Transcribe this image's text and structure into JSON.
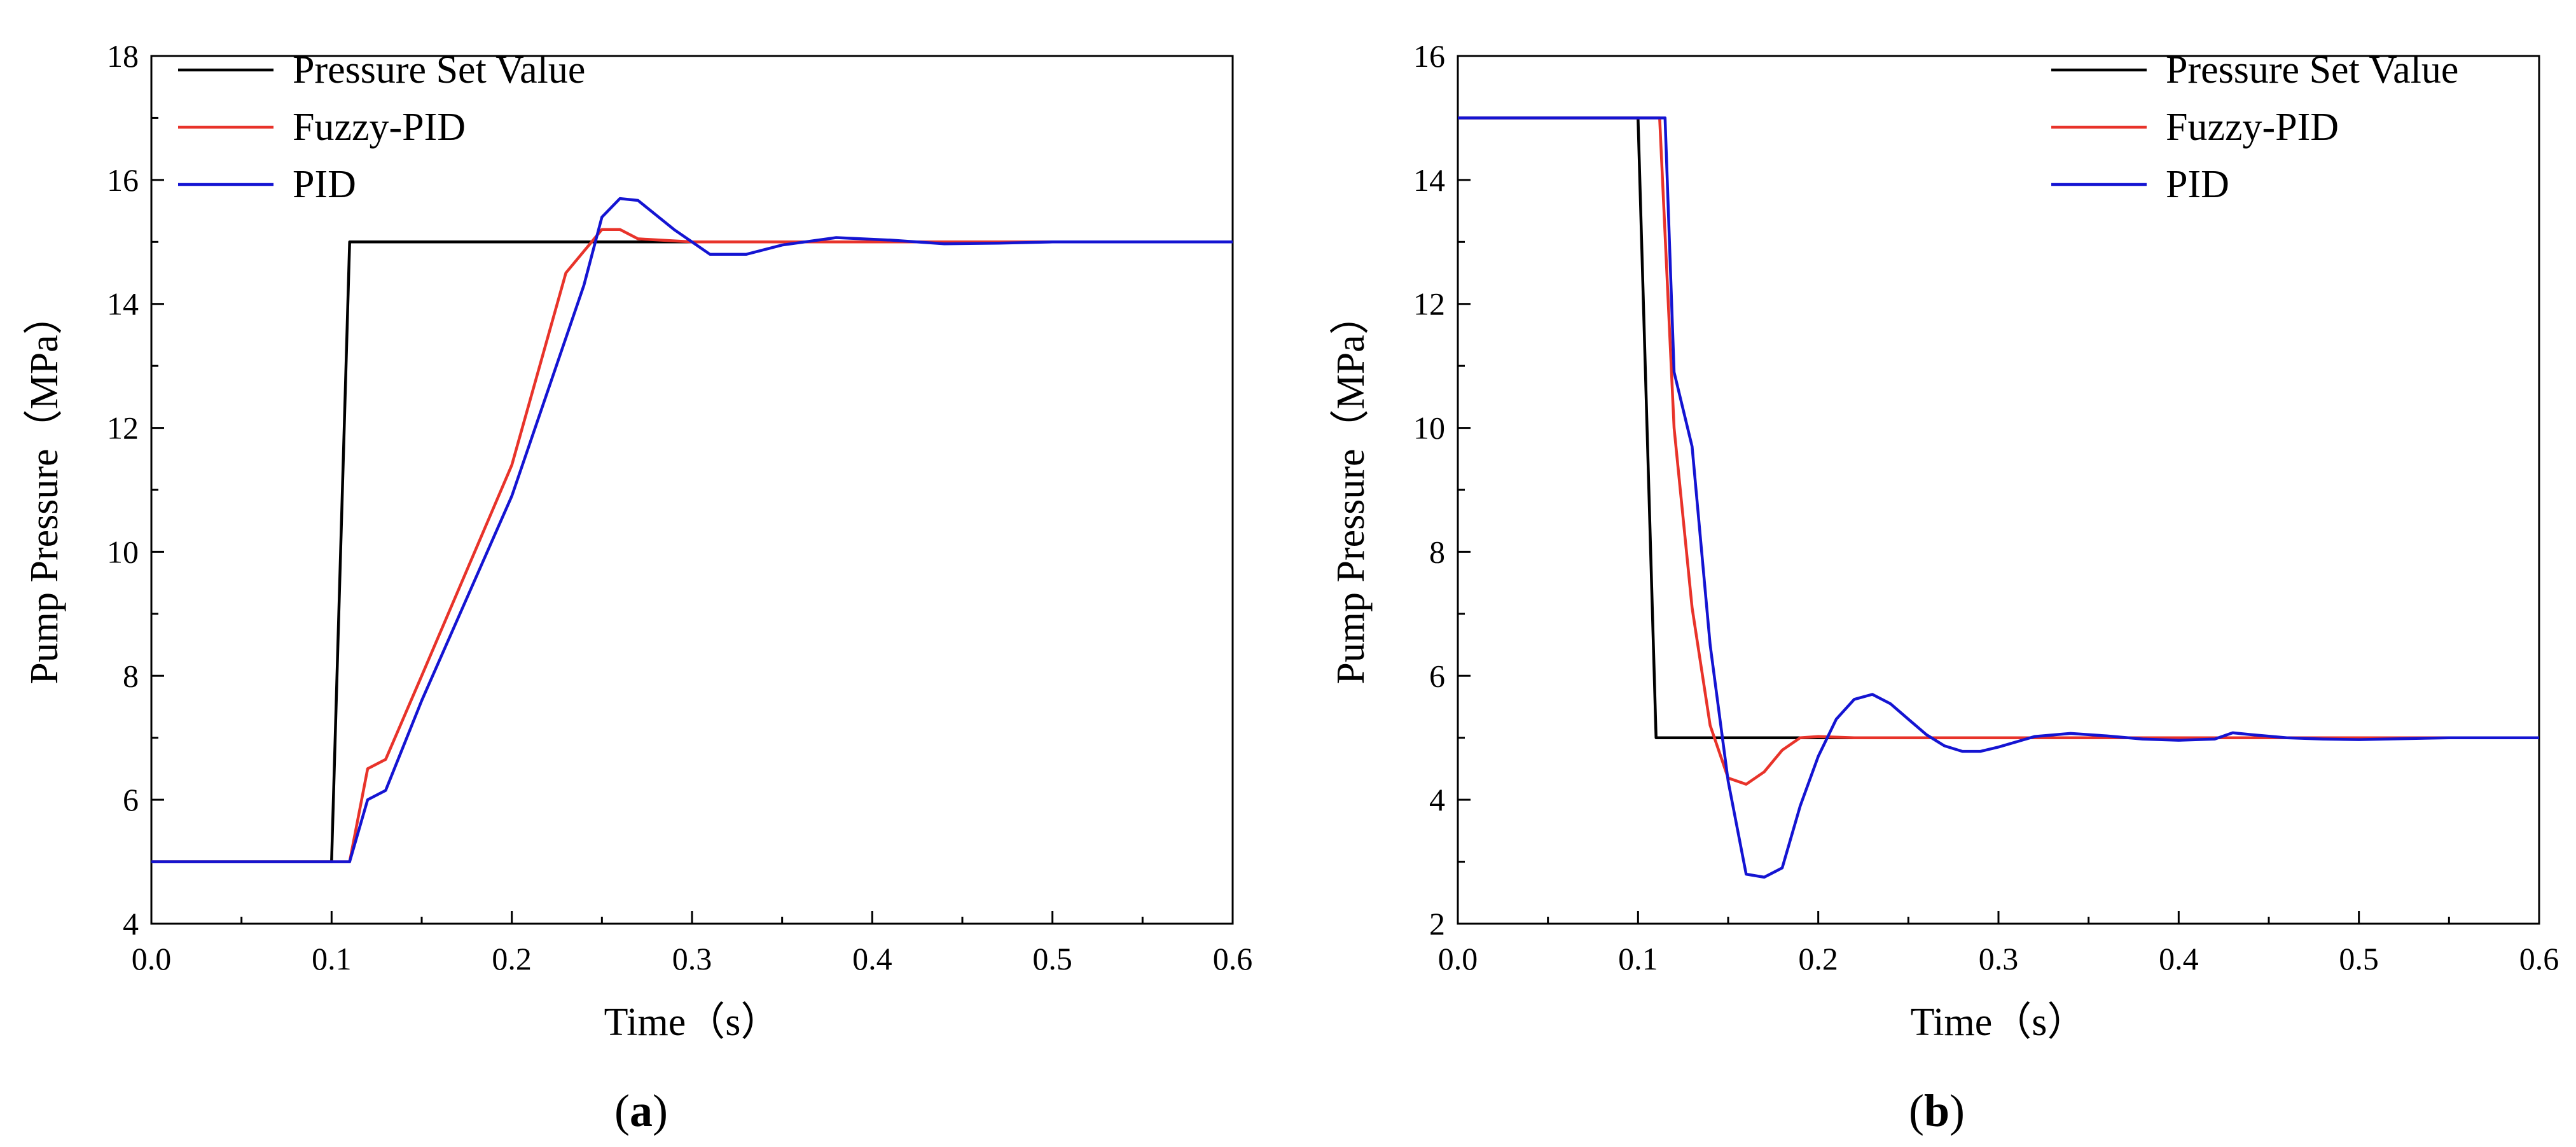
{
  "figure": {
    "panels": [
      {
        "label_open": "(",
        "label_letter": "a",
        "label_close": ")"
      },
      {
        "label_open": "(",
        "label_letter": "b",
        "label_close": ")"
      }
    ]
  },
  "chart_data": [
    {
      "type": "line",
      "xlabel": "Time（s）",
      "ylabel": "Pump Pressure（MPa）",
      "xlim": [
        0,
        0.6
      ],
      "ylim": [
        4,
        18
      ],
      "xticks": [
        0.0,
        0.1,
        0.2,
        0.3,
        0.4,
        0.5,
        0.6
      ],
      "xtick_labels": [
        "0.0",
        "0.1",
        "0.2",
        "0.3",
        "0.4",
        "0.5",
        "0.6"
      ],
      "yticks": [
        4,
        6,
        8,
        10,
        12,
        14,
        16,
        18
      ],
      "ytick_labels": [
        "4",
        "6",
        "8",
        "10",
        "12",
        "14",
        "16",
        "18"
      ],
      "grid": false,
      "legend_position": "top-left",
      "series": [
        {
          "name": "Pressure Set Value",
          "color": "#000000",
          "x": [
            0,
            0.1,
            0.11,
            0.6
          ],
          "y": [
            5,
            5,
            15,
            15
          ]
        },
        {
          "name": "Fuzzy-PID",
          "color": "#e8332a",
          "x": [
            0,
            0.11,
            0.12,
            0.13,
            0.15,
            0.2,
            0.23,
            0.25,
            0.26,
            0.27,
            0.3,
            0.35,
            0.4,
            0.6
          ],
          "y": [
            5,
            5,
            6.5,
            6.65,
            8.0,
            11.4,
            14.5,
            15.2,
            15.2,
            15.05,
            15.0,
            15.0,
            15.0,
            15.0
          ]
        },
        {
          "name": "PID",
          "color": "#1414d2",
          "x": [
            0,
            0.11,
            0.12,
            0.13,
            0.15,
            0.2,
            0.24,
            0.25,
            0.26,
            0.27,
            0.29,
            0.31,
            0.33,
            0.35,
            0.38,
            0.41,
            0.44,
            0.47,
            0.5,
            0.6
          ],
          "y": [
            5,
            5,
            6.0,
            6.15,
            7.6,
            10.9,
            14.3,
            15.4,
            15.7,
            15.67,
            15.2,
            14.8,
            14.8,
            14.95,
            15.07,
            15.03,
            14.97,
            14.98,
            15.0,
            15.0
          ]
        }
      ]
    },
    {
      "type": "line",
      "xlabel": "Time（s）",
      "ylabel": "Pump Pressure（MPa）",
      "xlim": [
        0,
        0.6
      ],
      "ylim": [
        2,
        16
      ],
      "xticks": [
        0.0,
        0.1,
        0.2,
        0.3,
        0.4,
        0.5,
        0.6
      ],
      "xtick_labels": [
        "0.0",
        "0.1",
        "0.2",
        "0.3",
        "0.4",
        "0.5",
        "0.6"
      ],
      "yticks": [
        2,
        4,
        6,
        8,
        10,
        12,
        14,
        16
      ],
      "ytick_labels": [
        "2",
        "4",
        "6",
        "8",
        "10",
        "12",
        "14",
        "16"
      ],
      "grid": false,
      "legend_position": "top-right",
      "series": [
        {
          "name": "Pressure Set Value",
          "color": "#000000",
          "x": [
            0,
            0.1,
            0.11,
            0.6
          ],
          "y": [
            15,
            15,
            5,
            5
          ]
        },
        {
          "name": "Fuzzy-PID",
          "color": "#e8332a",
          "x": [
            0,
            0.112,
            0.12,
            0.13,
            0.14,
            0.15,
            0.16,
            0.17,
            0.18,
            0.19,
            0.2,
            0.22,
            0.3,
            0.6
          ],
          "y": [
            15,
            15,
            10.0,
            7.1,
            5.2,
            4.35,
            4.25,
            4.45,
            4.8,
            5.0,
            5.02,
            5.0,
            5.0,
            5.0
          ]
        },
        {
          "name": "PID",
          "color": "#1414d2",
          "x": [
            0,
            0.115,
            0.12,
            0.13,
            0.14,
            0.15,
            0.16,
            0.17,
            0.18,
            0.19,
            0.2,
            0.21,
            0.22,
            0.23,
            0.24,
            0.25,
            0.26,
            0.27,
            0.28,
            0.29,
            0.3,
            0.32,
            0.34,
            0.36,
            0.38,
            0.4,
            0.42,
            0.43,
            0.44,
            0.46,
            0.48,
            0.5,
            0.55,
            0.6
          ],
          "y": [
            15,
            15,
            10.9,
            9.7,
            6.5,
            4.3,
            2.8,
            2.75,
            2.9,
            3.9,
            4.7,
            5.3,
            5.62,
            5.7,
            5.55,
            5.3,
            5.05,
            4.87,
            4.78,
            4.78,
            4.85,
            5.02,
            5.07,
            5.03,
            4.98,
            4.96,
            4.98,
            5.08,
            5.05,
            5.0,
            4.98,
            4.97,
            5.0,
            5.0
          ]
        }
      ]
    }
  ]
}
